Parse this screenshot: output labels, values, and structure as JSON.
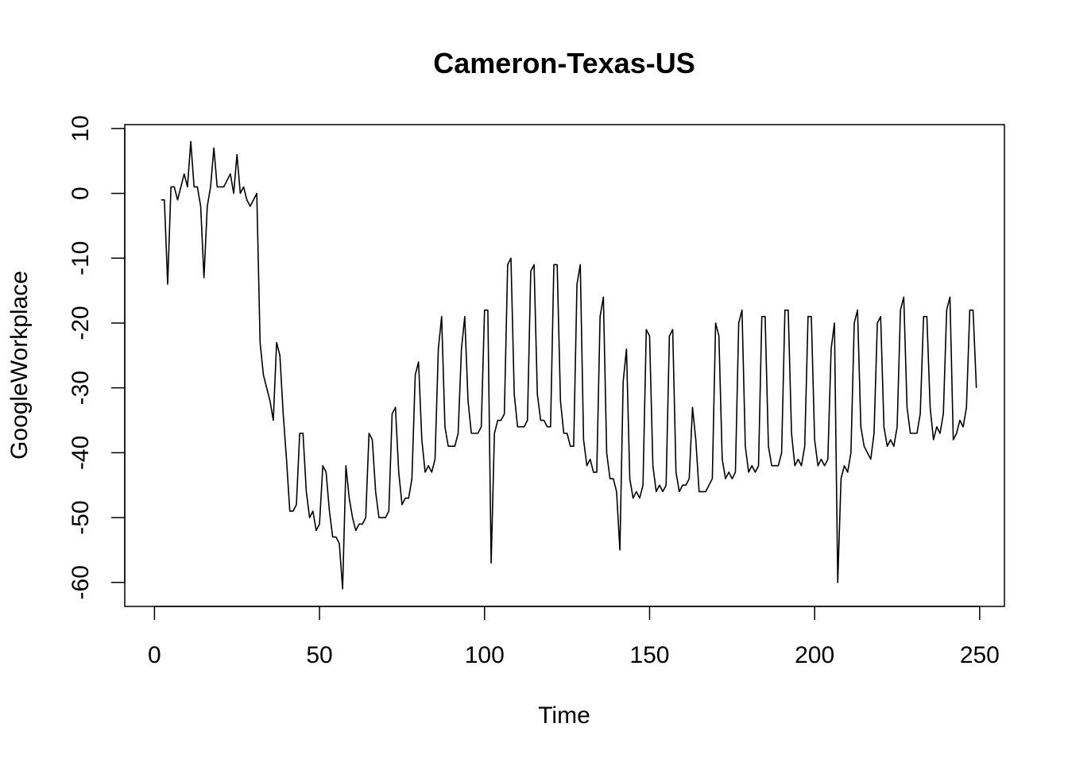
{
  "chart_data": {
    "type": "line",
    "title": "Cameron-Texas-US",
    "xlabel": "Time",
    "ylabel": "GoogleWorkplace",
    "xlim": [
      -9,
      257.5
    ],
    "ylim": [
      -63.7,
      10.6
    ],
    "xticks": [
      0,
      50,
      100,
      150,
      200,
      250
    ],
    "yticks": [
      10,
      0,
      -10,
      -20,
      -30,
      -40,
      -50,
      -60
    ],
    "grid": false,
    "line_color": "#000000",
    "series": [
      {
        "x_start": 2,
        "values": [
          -1,
          -1,
          -14,
          1,
          1,
          -1,
          1,
          3,
          1,
          8,
          1,
          1,
          -2,
          -13,
          -2,
          1,
          7,
          1,
          1,
          1,
          2,
          3,
          0,
          6,
          0,
          1,
          -1,
          -2,
          -1,
          0,
          -23,
          -28,
          -30,
          -32,
          -35,
          -23,
          -25,
          -34,
          -41,
          -49,
          -49,
          -48,
          -37,
          -37,
          -46,
          -50,
          -49,
          -52,
          -51,
          -42,
          -43,
          -49,
          -53,
          -53,
          -54,
          -61,
          -42,
          -47,
          -50,
          -52,
          -51,
          -51,
          -50,
          -37,
          -38,
          -46,
          -50,
          -50,
          -50,
          -49,
          -34,
          -33,
          -43,
          -48,
          -47,
          -47,
          -44,
          -28,
          -26,
          -38,
          -43,
          -42,
          -43,
          -41,
          -24,
          -19,
          -36,
          -39,
          -39,
          -39,
          -37,
          -24,
          -19,
          -32,
          -37,
          -37,
          -37,
          -36,
          -18,
          -18,
          -57,
          -37,
          -35,
          -35,
          -34,
          -11,
          -10,
          -31,
          -36,
          -36,
          -36,
          -35,
          -12,
          -11,
          -31,
          -35,
          -35,
          -36,
          -36,
          -11,
          -11,
          -32,
          -37,
          -37,
          -39,
          -39,
          -14,
          -11,
          -38,
          -42,
          -41,
          -43,
          -43,
          -19,
          -16,
          -40,
          -44,
          -44,
          -46,
          -55,
          -29,
          -24,
          -44,
          -47,
          -46,
          -47,
          -45,
          -21,
          -22,
          -42,
          -46,
          -45,
          -46,
          -45,
          -22,
          -21,
          -43,
          -46,
          -45,
          -45,
          -44,
          -33,
          -38,
          -46,
          -46,
          -46,
          -45,
          -44,
          -20,
          -22,
          -41,
          -44,
          -43,
          -44,
          -43,
          -20,
          -18,
          -39,
          -43,
          -42,
          -43,
          -42,
          -19,
          -19,
          -39,
          -42,
          -42,
          -42,
          -40,
          -18,
          -18,
          -37,
          -42,
          -41,
          -42,
          -39,
          -19,
          -19,
          -38,
          -42,
          -41,
          -42,
          -41,
          -24,
          -20,
          -60,
          -44,
          -42,
          -43,
          -40,
          -20,
          -18,
          -36,
          -39,
          -40,
          -41,
          -37,
          -20,
          -19,
          -36,
          -39,
          -38,
          -39,
          -36,
          -18,
          -16,
          -33,
          -37,
          -37,
          -37,
          -34,
          -19,
          -19,
          -33,
          -38,
          -36,
          -37,
          -34,
          -18,
          -16,
          -38,
          -37,
          -35,
          -36,
          -33,
          -18,
          -18,
          -30
        ]
      }
    ]
  }
}
